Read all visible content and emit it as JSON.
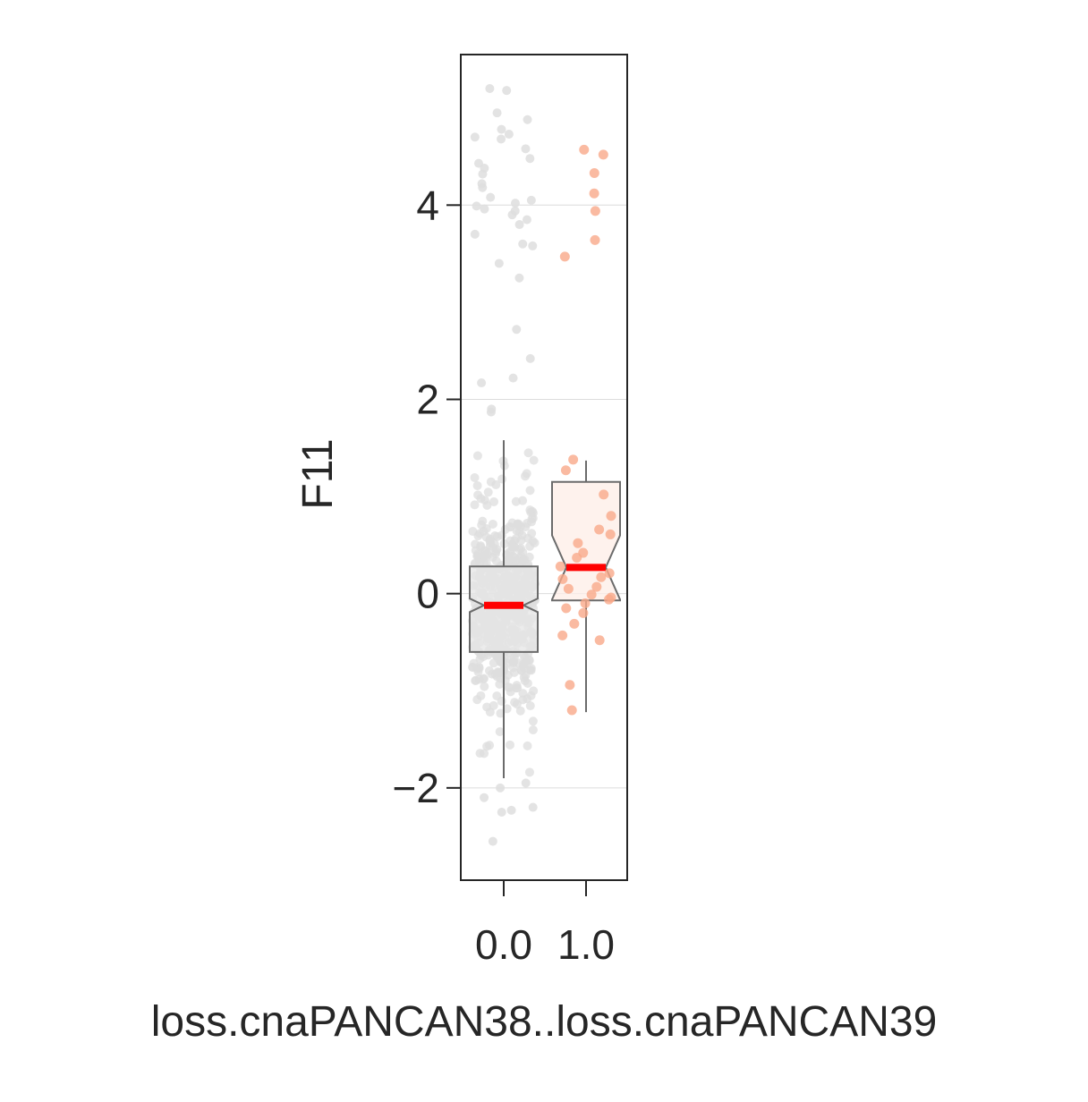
{
  "chart_data": {
    "type": "box",
    "xlabel": "loss.cnaPANCAN38..loss.cnaPANCAN39",
    "ylabel": "F11",
    "categories": [
      "0.0",
      "1.0"
    ],
    "ylim": [
      -2.95,
      5.55
    ],
    "yticks": [
      -2,
      0,
      2,
      4
    ],
    "ytick_labels": [
      "−2",
      "0",
      "2",
      "4"
    ],
    "grid": "horizontal",
    "notched": true,
    "colors": {
      "group0_point": "#dedede",
      "group0_box_fill": "#e6e6e6",
      "group1_point": "#f9a98a",
      "group1_box_fill": "#fdeee7",
      "box_edge": "#6b6b6b",
      "median": "#ff0000",
      "axis": "#262626",
      "grid": "#dcdcdc"
    },
    "boxes": [
      {
        "category": "0.0",
        "q1": -0.6,
        "median": -0.12,
        "q3": 0.28,
        "notch_low": -0.05,
        "notch_high": -0.19,
        "whisker_low": -1.9,
        "whisker_high": 1.58
      },
      {
        "category": "1.0",
        "q1": -0.07,
        "median": 0.27,
        "q3": 1.15,
        "notch_low": 0.6,
        "notch_high": -0.06,
        "whisker_low": -1.22,
        "whisker_high": 1.37
      }
    ],
    "points": [
      {
        "category": "1.0",
        "values": [
          4.57,
          4.52,
          4.33,
          4.12,
          3.94,
          3.64,
          3.47,
          1.38,
          1.27,
          1.02,
          0.8,
          0.66,
          0.61,
          0.52,
          0.42,
          0.37,
          0.28,
          0.21,
          0.17,
          0.15,
          0.07,
          0.05,
          -0.01,
          -0.04,
          -0.06,
          -0.1,
          -0.15,
          -0.2,
          -0.31,
          -0.43,
          -0.48,
          -0.94,
          -1.2
        ]
      },
      {
        "category": "0.0",
        "outliers": [
          5.2,
          5.18,
          4.95,
          4.88,
          4.78,
          4.73,
          4.7,
          4.68,
          4.58,
          4.48,
          4.43,
          4.38,
          4.32,
          4.22,
          4.18,
          4.08,
          4.05,
          4.02,
          3.99,
          3.96,
          3.94,
          3.9,
          3.85,
          3.8,
          3.7,
          3.6,
          3.58,
          3.4,
          3.25,
          2.72,
          2.42,
          2.22,
          2.17,
          1.9,
          1.87,
          -1.95,
          -2.0,
          -2.1,
          -2.2,
          -2.23,
          -2.25,
          -2.55
        ]
      }
    ]
  }
}
